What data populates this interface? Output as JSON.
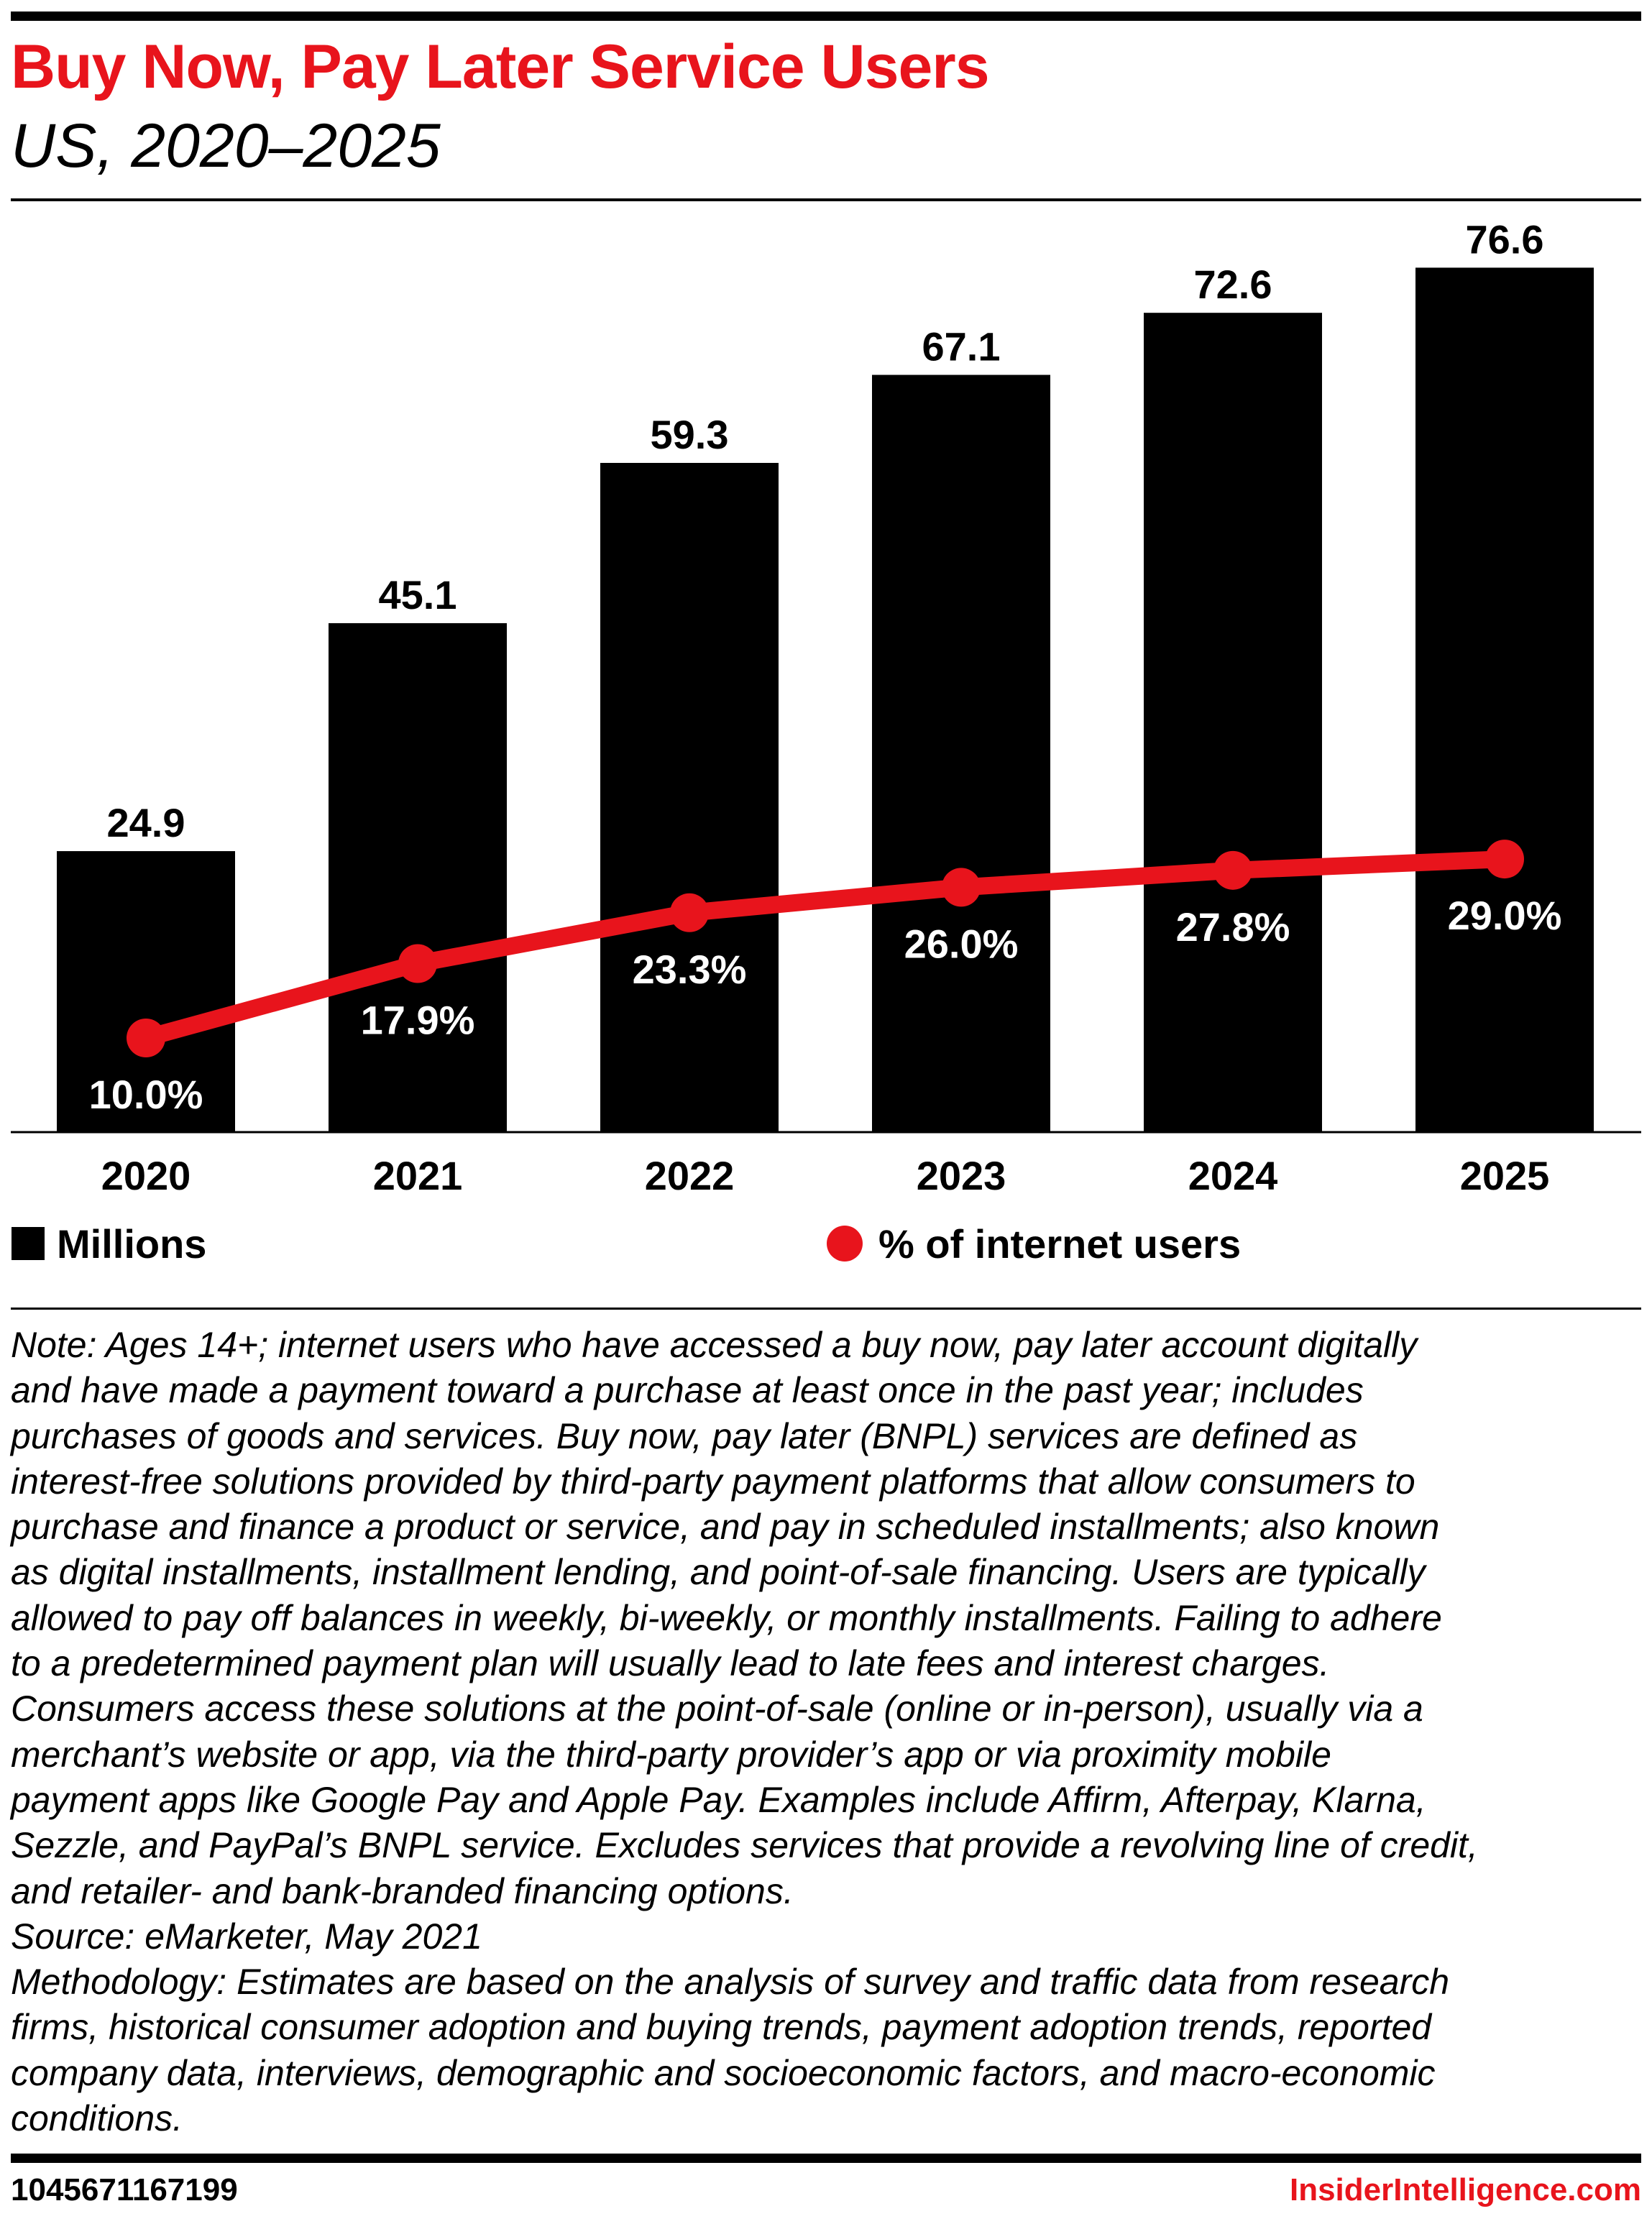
{
  "header": {
    "title": "Buy Now, Pay Later Service Users",
    "subtitle": "US, 2020–2025"
  },
  "chart_data": {
    "type": "bar",
    "categories": [
      "2020",
      "2021",
      "2022",
      "2023",
      "2024",
      "2025"
    ],
    "series": [
      {
        "name": "Millions",
        "kind": "bar",
        "color": "#000000",
        "values": [
          24.9,
          45.1,
          59.3,
          67.1,
          72.6,
          76.6
        ],
        "labels": [
          "24.9",
          "45.1",
          "59.3",
          "67.1",
          "72.6",
          "76.6"
        ]
      },
      {
        "name": "% of internet users",
        "kind": "line",
        "color": "#e8141c",
        "values": [
          10.0,
          17.9,
          23.3,
          26.0,
          27.8,
          29.0
        ],
        "labels": [
          "10.0%",
          "17.9%",
          "23.3%",
          "26.0%",
          "27.8%",
          "29.0%"
        ]
      }
    ],
    "grid": false,
    "legend_placement": "bottom"
  },
  "legend": {
    "bar_label": "Millions",
    "line_label": "% of internet users"
  },
  "notes": [
    "Note: Ages 14+; internet users who have accessed a buy now, pay later account digitally",
    "and have made a payment toward a purchase at least once in the past year; includes",
    "purchases of goods and services. Buy now, pay later (BNPL) services are defined as",
    "interest-free solutions provided by third-party payment platforms that allow consumers to",
    "purchase and finance a product or service, and pay in scheduled installments; also known",
    "as digital installments, installment lending, and point-of-sale financing. Users are typically",
    "allowed to pay off balances in weekly, bi-weekly, or monthly installments. Failing to adhere",
    "to a predetermined payment plan will usually lead to late fees and interest charges.",
    "Consumers access these solutions at the point-of-sale (online or in-person), usually via a",
    "merchant’s website or app, via the third-party provider’s app or via proximity mobile",
    "payment apps like Google Pay and Apple Pay. Examples include Affirm, Afterpay, Klarna,",
    "Sezzle, and PayPal’s BNPL service. Excludes services that provide a revolving line of credit,",
    "and retailer- and bank-branded financing options.",
    "Source: eMarketer, May 2021",
    "Methodology: Estimates are based on the analysis of survey and traffic data from research",
    "firms, historical consumer adoption and buying trends, payment adoption trends, reported",
    "company data, interviews, demographic and socioeconomic factors, and macro-economic",
    "conditions."
  ],
  "footer": {
    "id": "1045671167199",
    "brand": "InsiderIntelligence.com"
  }
}
